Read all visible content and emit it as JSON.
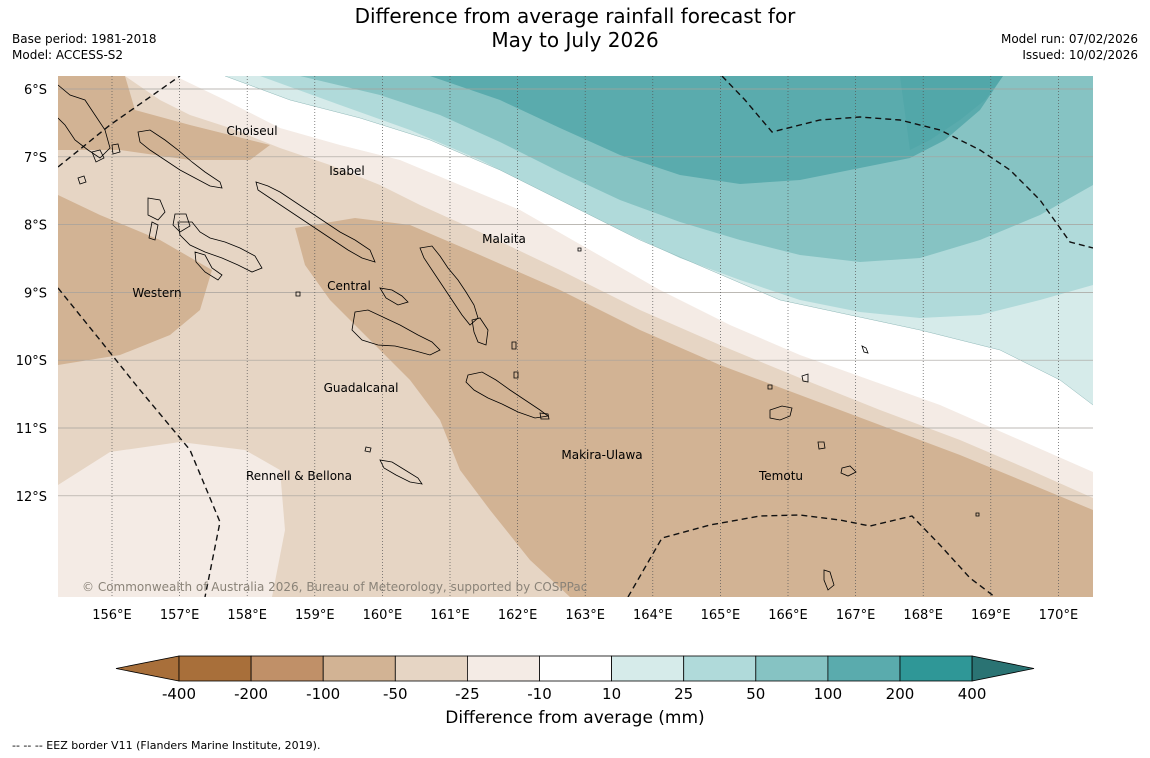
{
  "title": {
    "line1": "Difference from average rainfall forecast for",
    "line2": "May to July 2026"
  },
  "meta_left": {
    "base_period": "Base period: 1981-2018",
    "model": "Model: ACCESS-S2"
  },
  "meta_right": {
    "model_run": "Model run: 07/02/2026",
    "issued": "Issued: 10/02/2026"
  },
  "map": {
    "lat_labels": [
      "6°S",
      "7°S",
      "8°S",
      "9°S",
      "10°S",
      "11°S",
      "12°S"
    ],
    "lon_labels": [
      "156°E",
      "157°E",
      "158°E",
      "159°E",
      "160°E",
      "161°E",
      "162°E",
      "163°E",
      "164°E",
      "165°E",
      "166°E",
      "167°E",
      "168°E",
      "169°E",
      "170°E"
    ],
    "regions": {
      "choiseul": "Choiseul",
      "isabel": "Isabel",
      "malaita": "Malaita",
      "western": "Western",
      "central": "Central",
      "guadalcanal": "Guadalcanal",
      "makira_ulawa": "Makira-Ulawa",
      "rennell_bellona": "Rennell & Bellona",
      "temotu": "Temotu"
    },
    "copyright": "© Commonwealth of Australia 2026, Bureau of Meteorology, supported by COSPPac"
  },
  "colors": {
    "b400": "#a86f3a",
    "b200": "#c09068",
    "b100": "#d2b394",
    "b50": "#e6d5c4",
    "b25": "#f4ebe5",
    "neutral": "#ffffff",
    "g10": "#d6ebea",
    "g25": "#b0dada",
    "g50": "#86c3c3",
    "g100": "#5aabad",
    "g200": "#2f9797",
    "g400": "#2a7373"
  },
  "colorbar": {
    "ticks": [
      "-400",
      "-200",
      "-100",
      "-50",
      "-25",
      "-10",
      "10",
      "25",
      "50",
      "100",
      "200",
      "400"
    ],
    "label": "Difference from average (mm)"
  },
  "footnote": "--  --  -- EEZ border V11 (Flanders Marine Institute, 2019)."
}
